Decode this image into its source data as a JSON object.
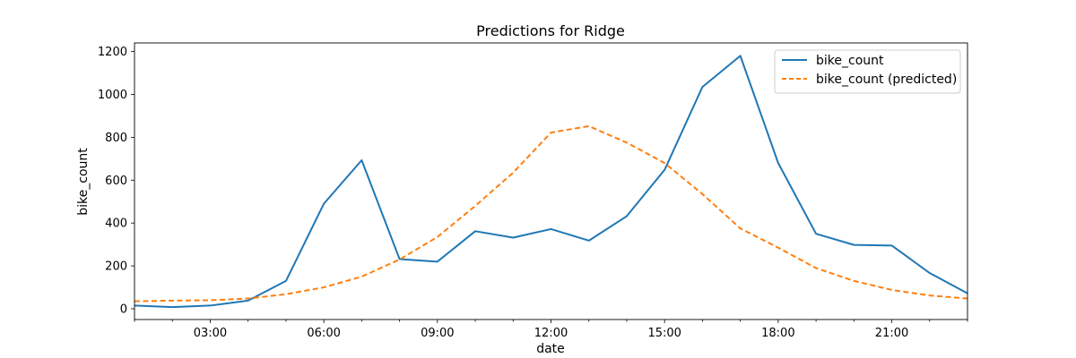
{
  "chart_data": {
    "type": "line",
    "title": "Predictions for Ridge",
    "xlabel": "date",
    "ylabel": "bike_count",
    "x": [
      "01:00",
      "02:00",
      "03:00",
      "04:00",
      "05:00",
      "06:00",
      "07:00",
      "08:00",
      "09:00",
      "10:00",
      "11:00",
      "12:00",
      "13:00",
      "14:00",
      "15:00",
      "16:00",
      "17:00",
      "18:00",
      "19:00",
      "20:00",
      "21:00",
      "22:00",
      "23:00"
    ],
    "x_hours": [
      1,
      2,
      3,
      4,
      5,
      6,
      7,
      8,
      9,
      10,
      11,
      12,
      13,
      14,
      15,
      16,
      17,
      18,
      19,
      20,
      21,
      22,
      23
    ],
    "xlim": [
      1,
      23
    ],
    "ylim": [
      -50,
      1240
    ],
    "x_ticks": [
      "03:00",
      "06:00",
      "09:00",
      "12:00",
      "15:00",
      "18:00",
      "21:00"
    ],
    "x_tick_hours": [
      3,
      6,
      9,
      12,
      15,
      18,
      21
    ],
    "y_ticks": [
      "0",
      "200",
      "400",
      "600",
      "800",
      "1000",
      "1200"
    ],
    "y_tick_values": [
      0,
      200,
      400,
      600,
      800,
      1000,
      1200
    ],
    "grid": false,
    "legend_position": "top-right",
    "series": [
      {
        "name": "bike_count",
        "color": "#1f77b4",
        "style": "solid",
        "values": [
          15,
          8,
          15,
          38,
          130,
          490,
          693,
          232,
          220,
          362,
          332,
          372,
          318,
          432,
          648,
          1035,
          1180,
          680,
          350,
          298,
          295,
          167,
          72
        ]
      },
      {
        "name": "bike_count (predicted)",
        "color": "#ff7f0e",
        "style": "dashed",
        "values": [
          35,
          38,
          40,
          48,
          68,
          100,
          150,
          230,
          335,
          480,
          635,
          822,
          852,
          775,
          680,
          535,
          375,
          285,
          190,
          130,
          88,
          62,
          48
        ]
      }
    ]
  }
}
